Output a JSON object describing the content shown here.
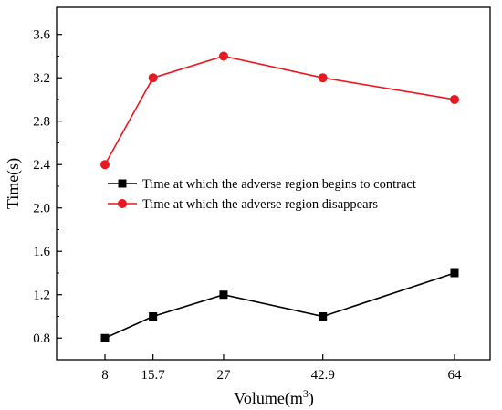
{
  "chart_data": {
    "type": "line",
    "xlabel": "Volume(m",
    "xlabel_superscript": "3",
    "xlabel_suffix": ")",
    "ylabel": "Time(s)",
    "x": [
      8,
      15.7,
      27,
      42.9,
      64
    ],
    "x_tick_labels": [
      "8",
      "15.7",
      "27",
      "42.9",
      "64"
    ],
    "y_ticks": [
      0.8,
      1.2,
      1.6,
      2.0,
      2.4,
      2.8,
      3.2,
      3.6
    ],
    "y_tick_labels": [
      "0.8",
      "1.2",
      "1.6",
      "2.0",
      "2.4",
      "2.8",
      "3.2",
      "3.6"
    ],
    "ylim": [
      0.6,
      3.85
    ],
    "xlim": [
      8,
      64
    ],
    "grid": false,
    "legend_position": "middle-right",
    "series": [
      {
        "name": "Time at which the adverse region begins to contract",
        "values": [
          0.8,
          1.0,
          1.2,
          1.0,
          1.4
        ],
        "color": "#000000",
        "marker": "square"
      },
      {
        "name": "Time at which the adverse region disappears",
        "values": [
          2.4,
          3.2,
          3.4,
          3.2,
          3.0
        ],
        "color": "#e8191f",
        "marker": "circle"
      }
    ]
  }
}
